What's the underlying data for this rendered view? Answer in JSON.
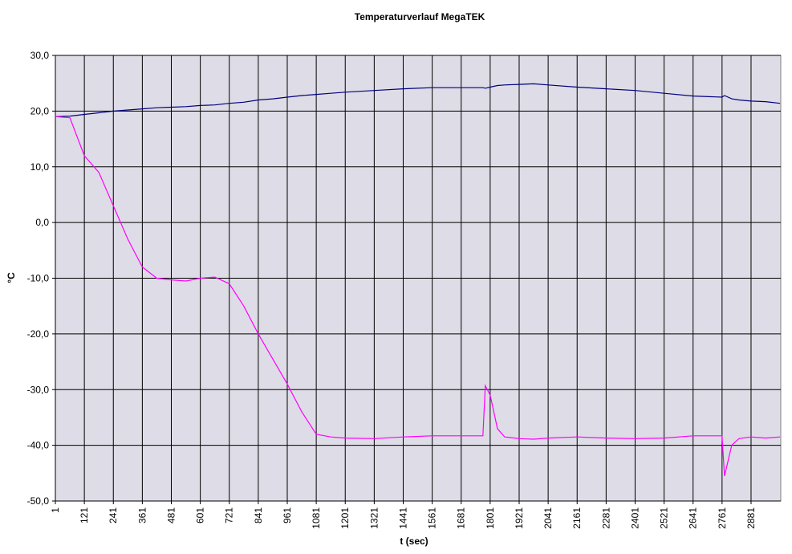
{
  "chart_data": {
    "type": "line",
    "title": "Temperaturverlauf MegaTEK",
    "x_label": "t (sec)",
    "y_label": "°C",
    "x": [
      1,
      61,
      121,
      181,
      241,
      301,
      361,
      421,
      481,
      541,
      601,
      661,
      721,
      781,
      841,
      901,
      961,
      1021,
      1081,
      1141,
      1201,
      1321,
      1441,
      1561,
      1681,
      1771,
      1781,
      1801,
      1831,
      1861,
      1921,
      1981,
      2041,
      2161,
      2281,
      2401,
      2521,
      2641,
      2761,
      2771,
      2801,
      2831,
      2881,
      2941,
      3001
    ],
    "series": [
      {
        "color": "#000080",
        "values": [
          19,
          19.1,
          19.4,
          19.7,
          20,
          20.2,
          20.4,
          20.6,
          20.7,
          20.8,
          21,
          21.1,
          21.4,
          21.6,
          22,
          22.2,
          22.5,
          22.8,
          23,
          23.2,
          23.4,
          23.7,
          24,
          24.2,
          24.2,
          24.2,
          24.1,
          24.3,
          24.6,
          24.7,
          24.8,
          24.9,
          24.7,
          24.3,
          24,
          23.7,
          23.2,
          22.7,
          22.5,
          22.8,
          22.2,
          22,
          21.8,
          21.7,
          21.4
        ]
      },
      {
        "color": "#ff00ff",
        "values": [
          19,
          18.8,
          12,
          9,
          3,
          -3,
          -8,
          -10,
          -10.3,
          -10.5,
          -10,
          -9.8,
          -11,
          -15,
          -20,
          -24.5,
          -29,
          -34,
          -38,
          -38.5,
          -38.7,
          -38.8,
          -38.5,
          -38.3,
          -38.3,
          -38.3,
          -29.3,
          -31,
          -37,
          -38.5,
          -38.8,
          -38.9,
          -38.7,
          -38.5,
          -38.7,
          -38.8,
          -38.7,
          -38.3,
          -38.3,
          -45.5,
          -40,
          -38.8,
          -38.5,
          -38.7,
          -38.5
        ]
      }
    ],
    "xlim": [
      1,
      3004
    ],
    "xticks": [
      1,
      121,
      241,
      361,
      481,
      601,
      721,
      841,
      961,
      1081,
      1201,
      1321,
      1441,
      1561,
      1681,
      1801,
      1921,
      2041,
      2161,
      2281,
      2401,
      2521,
      2641,
      2761,
      2881
    ],
    "ylim": [
      -50,
      30
    ],
    "yticks": [
      {
        "value": -50,
        "label": "-50,0"
      },
      {
        "value": -40,
        "label": "-40,0"
      },
      {
        "value": -30,
        "label": "-30,0"
      },
      {
        "value": -20,
        "label": "-20,0"
      },
      {
        "value": -10,
        "label": "-10,0"
      },
      {
        "value": 0,
        "label": "0,0"
      },
      {
        "value": 10,
        "label": "10,0"
      },
      {
        "value": 20,
        "label": "20,0"
      },
      {
        "value": 30,
        "label": "30,0"
      }
    ],
    "grid": true
  }
}
